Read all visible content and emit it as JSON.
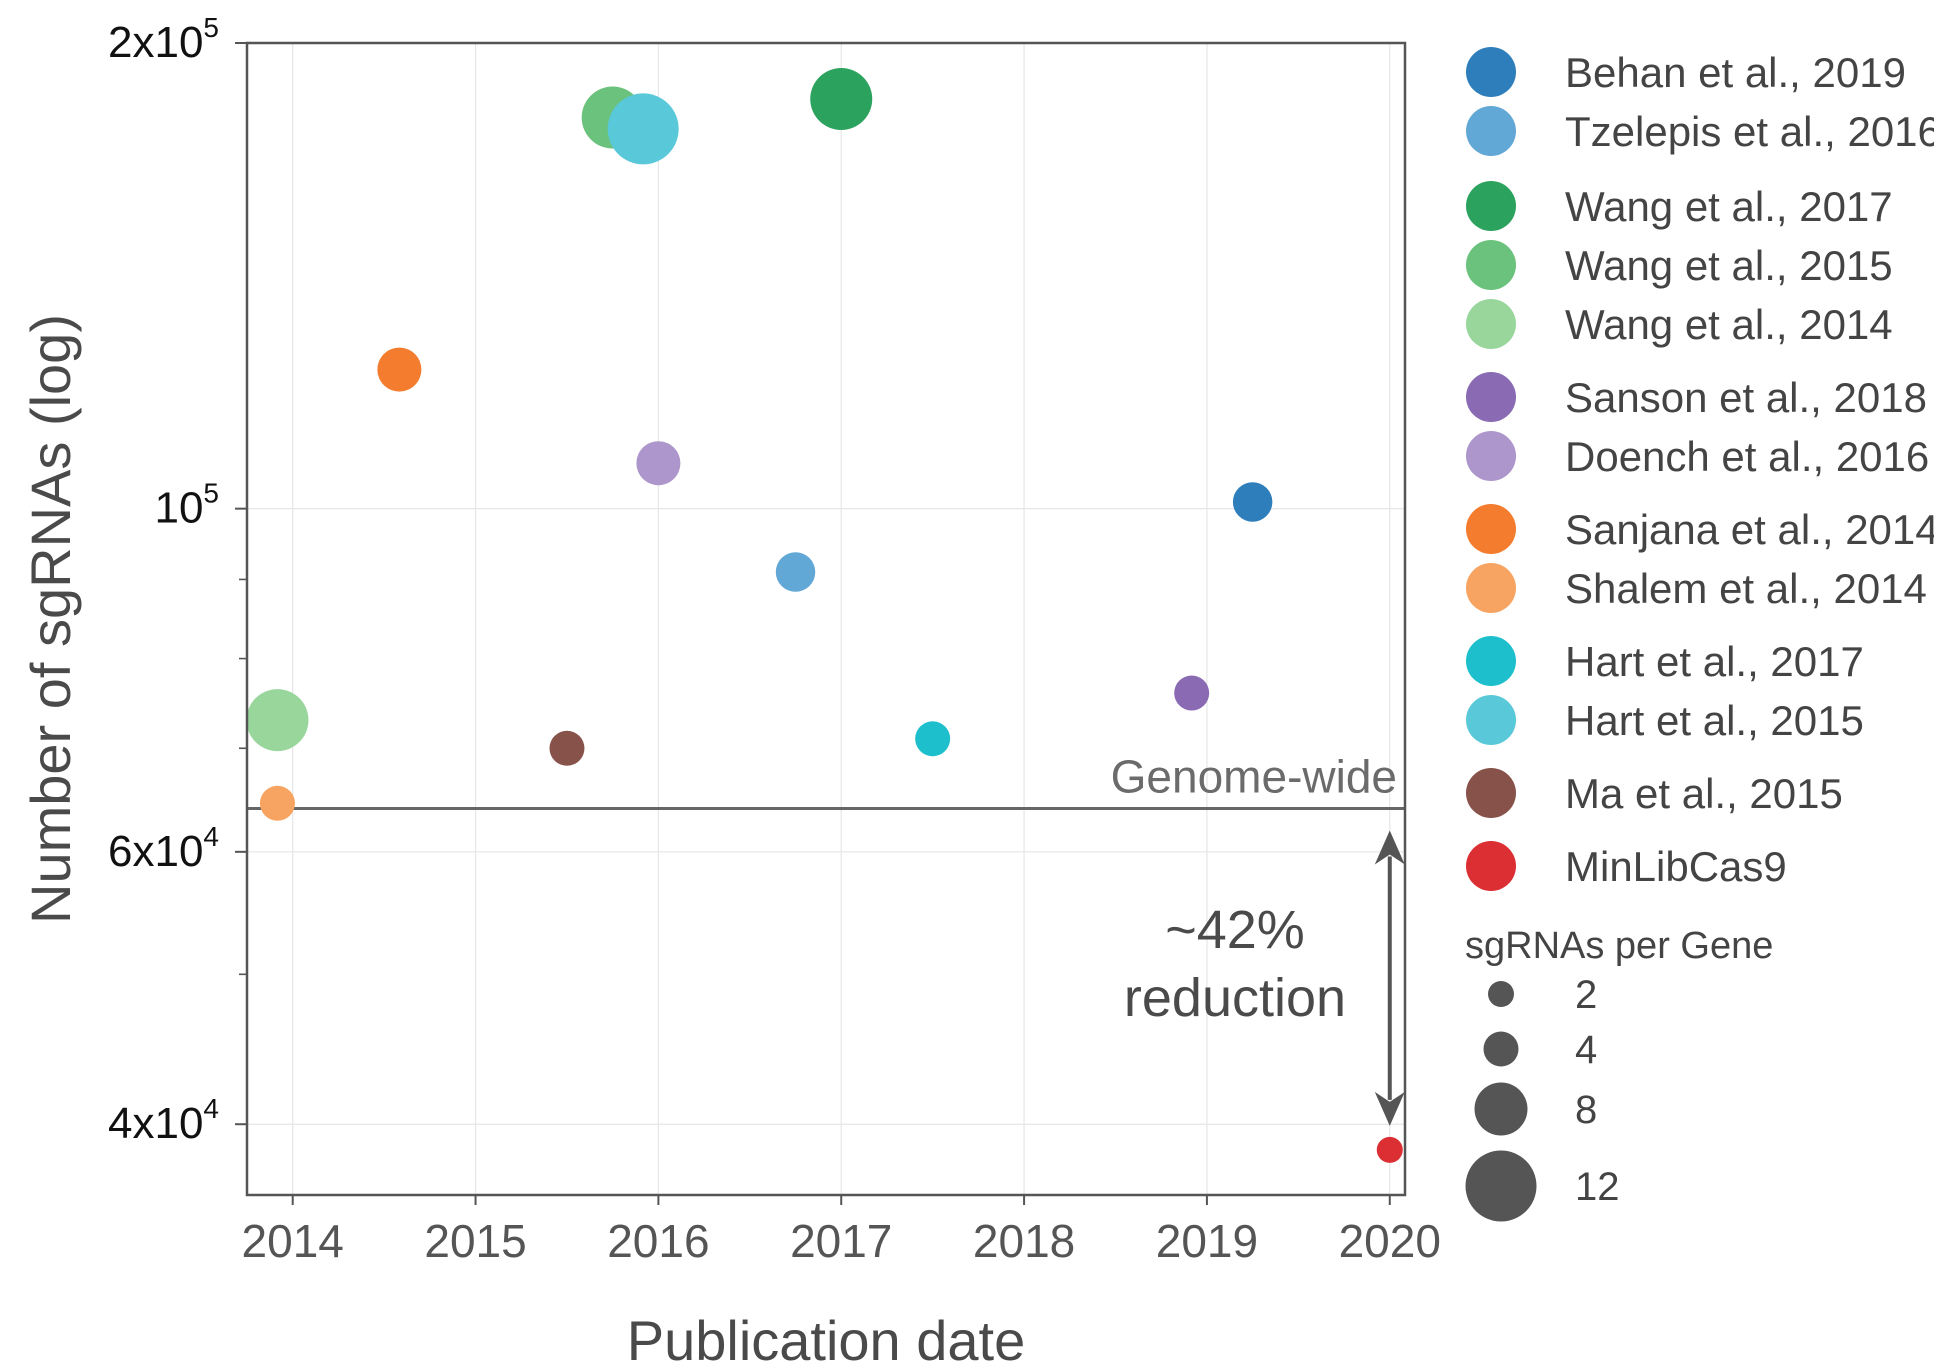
{
  "chart_data": {
    "type": "scatter",
    "xlabel": "Publication date",
    "ylabel": "Number of sgRNAs (log)",
    "y_scale": "log",
    "xlim": [
      "2013-10",
      "2020-02"
    ],
    "ylim": [
      36000,
      200000
    ],
    "x_ticks": [
      "2014",
      "2015",
      "2016",
      "2017",
      "2018",
      "2019",
      "2020"
    ],
    "y_ticks": [
      {
        "value": 200000,
        "base": "2x10",
        "exp": "5"
      },
      {
        "value": 100000,
        "base": "10",
        "exp": "5"
      },
      {
        "value": 60000,
        "base": "6x10",
        "exp": "4"
      },
      {
        "value": 40000,
        "base": "4x10",
        "exp": "4"
      }
    ],
    "y_minor_ticks": [
      90000,
      80000,
      70000,
      50000
    ],
    "grid": true,
    "reference_line": {
      "value": 64000,
      "label": "Genome-wide"
    },
    "annotation": {
      "lines": [
        "~42%",
        "reduction"
      ],
      "arrow_from": 64000,
      "arrow_to": 38500,
      "at_date": "2020-01"
    },
    "series": [
      {
        "name": "Behan et al., 2019",
        "color": "#2e7ebc",
        "date": "2019-04",
        "y": 101000,
        "sgrnas_per_gene": 5
      },
      {
        "name": "Tzelepis et al., 2016",
        "color": "#62a8d6",
        "date": "2016-10",
        "y": 91000,
        "sgrnas_per_gene": 5
      },
      {
        "name": "Wang et al., 2017",
        "color": "#2ca25f",
        "date": "2017-01",
        "y": 184000,
        "sgrnas_per_gene": 10
      },
      {
        "name": "Wang et al., 2015",
        "color": "#6bc27c",
        "date": "2015-10",
        "y": 179000,
        "sgrnas_per_gene": 10
      },
      {
        "name": "Wang et al., 2014",
        "color": "#98d69c",
        "date": "2013-12",
        "y": 73000,
        "sgrnas_per_gene": 10
      },
      {
        "name": "Sanson et al., 2018",
        "color": "#8a6bb3",
        "date": "2018-12",
        "y": 76000,
        "sgrnas_per_gene": 4
      },
      {
        "name": "Doench et al., 2016",
        "color": "#ad96cb",
        "date": "2016-01",
        "y": 107000,
        "sgrnas_per_gene": 6
      },
      {
        "name": "Sanjana et al., 2014",
        "color": "#f47c2f",
        "date": "2014-08",
        "y": 123000,
        "sgrnas_per_gene": 6
      },
      {
        "name": "Shalem et al., 2014",
        "color": "#f7a462",
        "date": "2013-12",
        "y": 64500,
        "sgrnas_per_gene": 4
      },
      {
        "name": "Hart et al., 2017",
        "color": "#1dbfcc",
        "date": "2017-07",
        "y": 71000,
        "sgrnas_per_gene": 4
      },
      {
        "name": "Hart et al., 2015",
        "color": "#59c8d8",
        "date": "2015-12",
        "y": 176000,
        "sgrnas_per_gene": 12
      },
      {
        "name": "Ma et al., 2015",
        "color": "#87524a",
        "date": "2015-07",
        "y": 70000,
        "sgrnas_per_gene": 4
      },
      {
        "name": "MinLibCas9",
        "color": "#dc2f34",
        "date": "2020-01",
        "y": 38500,
        "sgrnas_per_gene": 2
      }
    ],
    "size_legend": {
      "title": "sgRNAs per Gene",
      "values": [
        2,
        4,
        8,
        12
      ],
      "color": "#555555"
    },
    "legend_placement": "right",
    "frame_color": "#555555",
    "grid_color": "#e6e6e6"
  }
}
